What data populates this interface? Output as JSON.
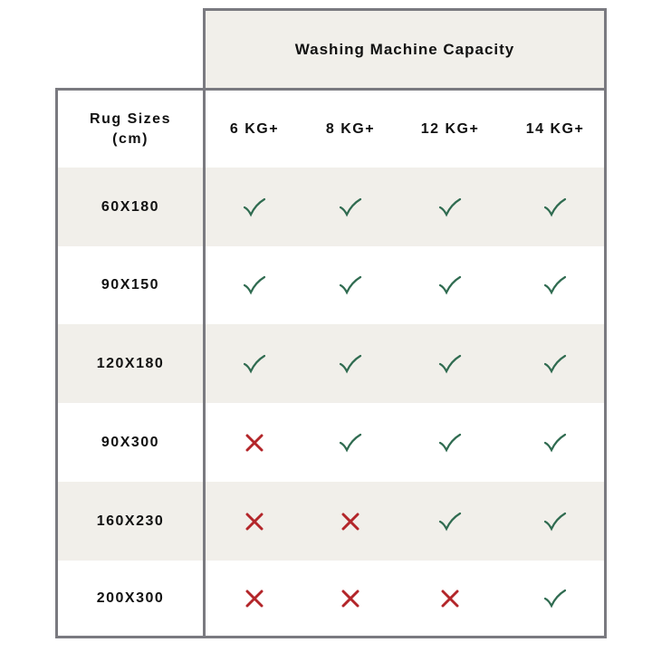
{
  "title": "Washing Machine Capacity",
  "row_header": {
    "line1": "Rug Sizes",
    "line2": "(cm)"
  },
  "columns": [
    "6 KG+",
    "8 KG+",
    "12 KG+",
    "14 KG+"
  ],
  "rows": [
    {
      "size": "60X180",
      "fits": [
        true,
        true,
        true,
        true
      ]
    },
    {
      "size": "90X150",
      "fits": [
        true,
        true,
        true,
        true
      ]
    },
    {
      "size": "120X180",
      "fits": [
        true,
        true,
        true,
        true
      ]
    },
    {
      "size": "90X300",
      "fits": [
        false,
        true,
        true,
        true
      ]
    },
    {
      "size": "160X230",
      "fits": [
        false,
        false,
        true,
        true
      ]
    },
    {
      "size": "200X300",
      "fits": [
        false,
        false,
        false,
        true
      ]
    }
  ],
  "colors": {
    "check": "#2f6b50",
    "cross": "#b3262a",
    "shade": "#f1efea",
    "border": "#7a7a80"
  }
}
